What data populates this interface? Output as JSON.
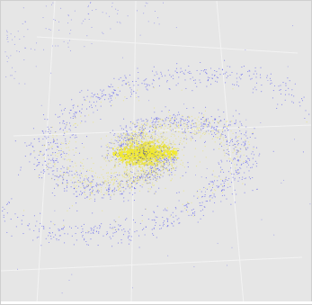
{
  "chart_data": {
    "type": "scatter",
    "title": "",
    "xlabel": "",
    "ylabel": "",
    "view": "3d-perspective",
    "grid": true,
    "legend": "none",
    "background_color": "#e6e6e6",
    "grid_color": "#f3f3f3",
    "series": [
      {
        "color": "#5b5bf0",
        "shape": "spiral-galaxy-disk",
        "center": [
          0,
          0
        ],
        "radius_range": [
          0.2,
          2.4
        ],
        "arms": 2,
        "point_count": 1800
      },
      {
        "color": "#e9e24a",
        "shape": "galactic-core",
        "center": [
          0,
          0
        ],
        "radius_range": [
          0,
          1.0
        ],
        "point_count": 2200
      }
    ]
  }
}
